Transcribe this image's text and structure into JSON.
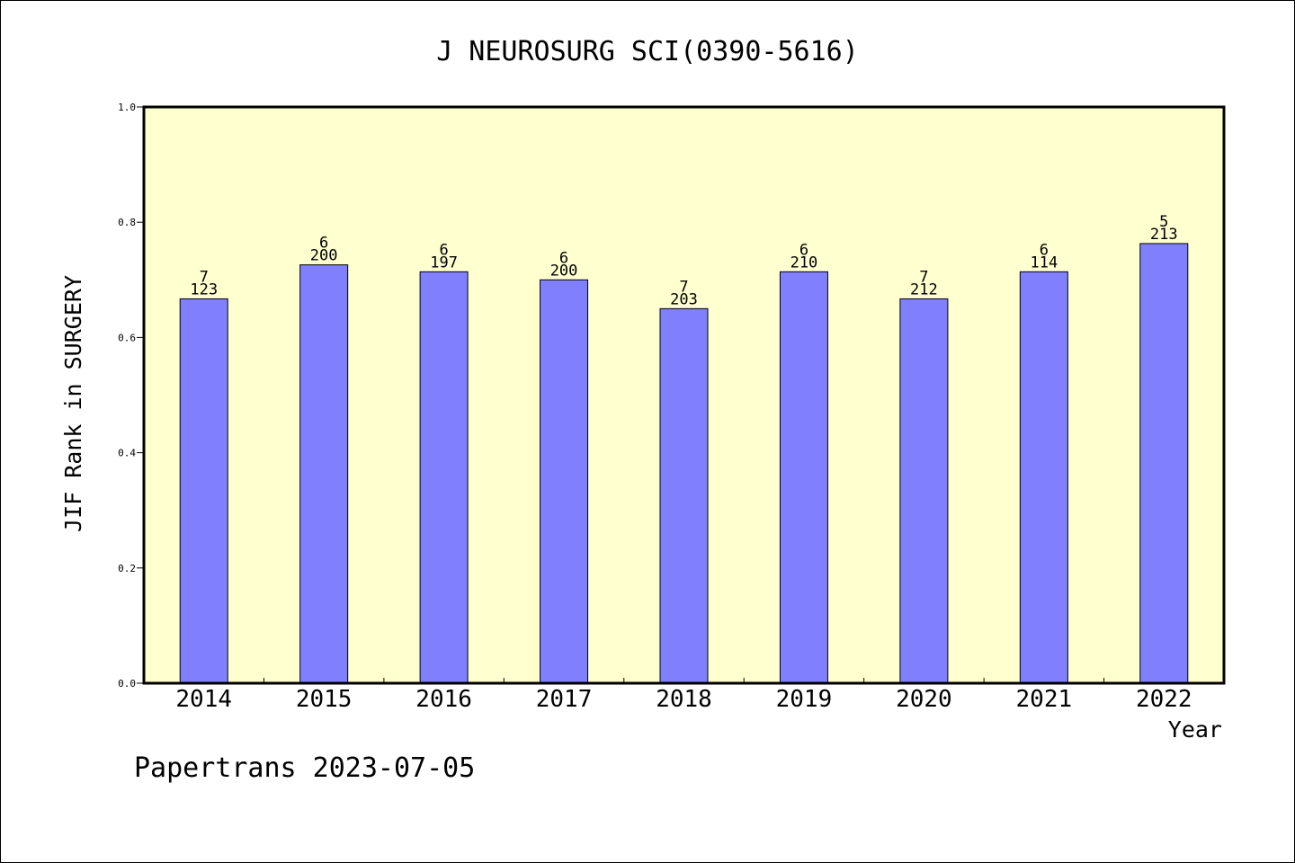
{
  "chart_data": {
    "type": "bar",
    "title": "J NEUROSURG SCI(0390-5616)",
    "xlabel": "Year",
    "ylabel": "JIF Rank in SURGERY",
    "ylim": [
      0.0,
      1.0
    ],
    "yticks": [
      "0.0",
      "0.2",
      "0.4",
      "0.6",
      "0.8",
      "1.0"
    ],
    "categories": [
      "2014",
      "2015",
      "2016",
      "2017",
      "2018",
      "2019",
      "2020",
      "2021",
      "2022"
    ],
    "values": [
      0.667,
      0.726,
      0.714,
      0.7,
      0.65,
      0.714,
      0.667,
      0.714,
      0.763
    ],
    "rank_labels": [
      "7",
      "6",
      "6",
      "6",
      "7",
      "6",
      "7",
      "6",
      "5"
    ],
    "total_labels": [
      "123",
      "200",
      "197",
      "200",
      "203",
      "210",
      "212",
      "114",
      "213"
    ],
    "grid": false,
    "colors": {
      "plot_background": "#ffffd0",
      "bar_fill": "#8080ff",
      "bar_stroke": "#000000"
    }
  },
  "footer": {
    "credit": "Papertrans 2023-07-05"
  }
}
